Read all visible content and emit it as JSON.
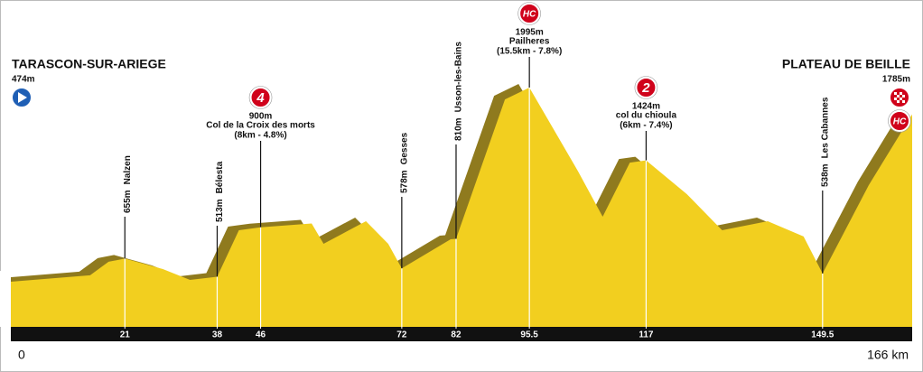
{
  "chart_data": {
    "type": "profile",
    "xlim": [
      0,
      166
    ],
    "ylim": [
      120,
      2115
    ],
    "xticks": [
      0,
      21,
      38,
      46,
      72,
      82,
      95.5,
      117,
      149.5,
      {
        "value": 166,
        "label": "166 km"
      }
    ],
    "profile": {
      "color": "#f2cf1f",
      "x": [
        0,
        14.6,
        18,
        21,
        28,
        33,
        38,
        42,
        46,
        55.4,
        57.6,
        65.4,
        69.5,
        72,
        81,
        82,
        91,
        95.5,
        104.5,
        109,
        114,
        117,
        124.5,
        131,
        139.4,
        146,
        149.5,
        158,
        166
      ],
      "values": [
        474,
        524,
        630,
        655,
        573,
        488,
        513,
        877,
        900,
        930,
        771,
        948,
        771,
        578,
        806,
        810,
        1902,
        1995,
        1336,
        983,
        1407,
        1424,
        1160,
        877,
        948,
        828,
        538,
        1230,
        1785
      ]
    },
    "start": {
      "name": "TARASCON-SUR-ARIEGE",
      "km": 0,
      "altitude": 474,
      "altitude_label": "474m"
    },
    "finish": {
      "name": "PLATEAU DE BEILLE",
      "km": 166,
      "altitude": 1785,
      "altitude_label": "1785m",
      "category": "HC"
    },
    "climbs": [
      {
        "category": "4",
        "altitude": 900,
        "altitude_label": "900m",
        "name": "Col de la Croix des morts",
        "details": "(8km - 4.8%)",
        "km": 46
      },
      {
        "category": "HC",
        "altitude": 1995,
        "altitude_label": "1995m",
        "name": "Pailheres",
        "details": "(15.5km - 7.8%)",
        "km": 95.5
      },
      {
        "category": "2",
        "altitude": 1424,
        "altitude_label": "1424m",
        "name": "col du chioula",
        "details": "(6km - 7.4%)",
        "km": 117
      }
    ],
    "places": [
      {
        "name": "Nalzen",
        "km": 21,
        "altitude": 655,
        "altitude_label": "655m"
      },
      {
        "name": "Bélesta",
        "km": 38,
        "altitude": 513,
        "altitude_label": "513m"
      },
      {
        "name": "Gesses",
        "km": 72,
        "altitude": 578,
        "altitude_label": "578m"
      },
      {
        "name": "Usson-les-Bains",
        "km": 82,
        "altitude": 810,
        "altitude_label": "810m"
      },
      {
        "name": "Les Cabannes",
        "km": 149.5,
        "altitude": 538,
        "altitude_label": "538m"
      }
    ]
  }
}
